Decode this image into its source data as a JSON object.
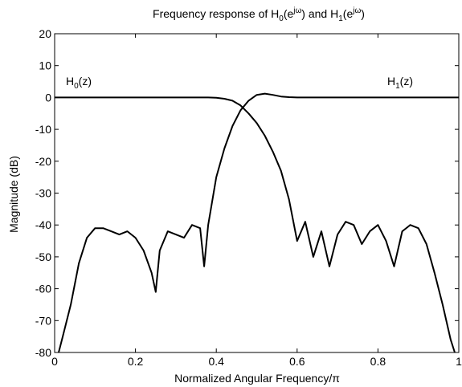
{
  "chart_data": {
    "type": "line",
    "title_parts": {
      "pre": "Frequency response of H",
      "sub0": "0",
      "mid0": "(e",
      "sup0": "jω",
      "mid1": ") and H",
      "sub1": "1",
      "mid2": "(e",
      "sup1": "jω",
      "post": ")"
    },
    "xlabel": "Normalized Angular Frequency/π",
    "ylabel": "Magnitude (dB)",
    "xlim": [
      0,
      1
    ],
    "ylim": [
      -80,
      20
    ],
    "xticks": [
      "0",
      "0.2",
      "0.4",
      "0.6",
      "0.8",
      "1"
    ],
    "yticks": [
      "20",
      "10",
      "0",
      "-10",
      "-20",
      "-30",
      "-40",
      "-50",
      "-60",
      "-70",
      "-80"
    ],
    "grid": false,
    "annotations": [
      {
        "base": "H",
        "sub": "0",
        "post": "(z)",
        "at": [
          0.06,
          5
        ]
      },
      {
        "base": "H",
        "sub": "1",
        "post": "(z)",
        "at": [
          0.84,
          5
        ]
      }
    ],
    "series": [
      {
        "name": "H0",
        "x": [
          0.0,
          0.05,
          0.1,
          0.15,
          0.2,
          0.25,
          0.3,
          0.35,
          0.38,
          0.4,
          0.42,
          0.44,
          0.46,
          0.48,
          0.5,
          0.52,
          0.54,
          0.56,
          0.58,
          0.6,
          0.62,
          0.64,
          0.66,
          0.68,
          0.7,
          0.72,
          0.74,
          0.76,
          0.78,
          0.8,
          0.82,
          0.84,
          0.86,
          0.88,
          0.9,
          0.92,
          0.94,
          0.96,
          0.98,
          0.99
        ],
        "y": [
          0,
          0,
          0,
          0,
          0,
          0,
          0,
          0,
          0,
          -0.1,
          -0.4,
          -1.0,
          -2.5,
          -5,
          -8,
          -12,
          -17,
          -23,
          -32,
          -45,
          -39,
          -50,
          -42,
          -53,
          -43,
          -39,
          -40,
          -46,
          -42,
          -40,
          -45,
          -53,
          -42,
          -40,
          -41,
          -46,
          -55,
          -65,
          -76,
          -80
        ]
      },
      {
        "name": "H1",
        "x": [
          0.01,
          0.02,
          0.04,
          0.06,
          0.08,
          0.1,
          0.12,
          0.14,
          0.16,
          0.18,
          0.2,
          0.22,
          0.24,
          0.25,
          0.26,
          0.28,
          0.3,
          0.32,
          0.34,
          0.36,
          0.37,
          0.38,
          0.4,
          0.42,
          0.44,
          0.46,
          0.48,
          0.5,
          0.52,
          0.54,
          0.56,
          0.58,
          0.6,
          0.65,
          0.7,
          0.8,
          0.9,
          1.0
        ],
        "y": [
          -80,
          -75,
          -65,
          -52,
          -44,
          -41,
          -41,
          -42,
          -43,
          -42,
          -44,
          -48,
          -55,
          -61,
          -48,
          -42,
          -43,
          -44,
          -40,
          -41,
          -53,
          -40,
          -25,
          -16,
          -9,
          -4,
          -1,
          0.8,
          1.2,
          0.8,
          0.3,
          0.1,
          0,
          0,
          0,
          0,
          0,
          0
        ]
      }
    ]
  }
}
